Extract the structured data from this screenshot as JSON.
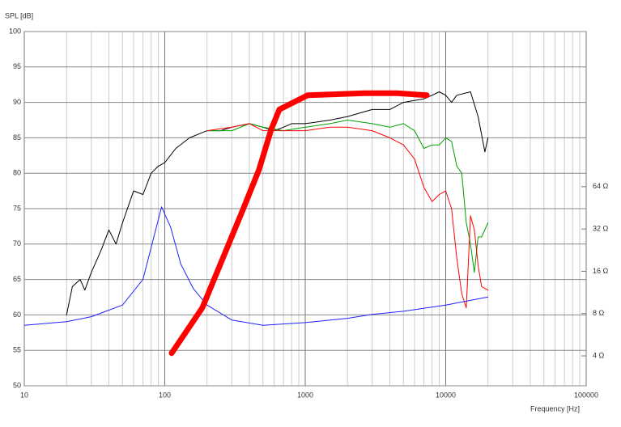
{
  "chart_data": {
    "type": "line",
    "y_label": "SPL [dB]",
    "x_label": "Frequency [Hz]",
    "xscale": "log",
    "xlim": [
      10,
      100000
    ],
    "xticks": [
      10,
      100,
      1000,
      10000,
      100000
    ],
    "ylim": [
      50,
      100
    ],
    "yticks": [
      50,
      55,
      60,
      65,
      70,
      75,
      80,
      85,
      90,
      95,
      100
    ],
    "y2scale": "log",
    "y2lim": [
      2.45,
      814
    ],
    "y2ticks": [
      {
        "value": 4,
        "label": "4 Ω"
      },
      {
        "value": 8,
        "label": "8 Ω"
      },
      {
        "value": 16,
        "label": "16 Ω"
      },
      {
        "value": 32,
        "label": "32 Ω"
      },
      {
        "value": 64,
        "label": "64 Ω"
      }
    ],
    "grid": true,
    "series": [
      {
        "color": "#000000",
        "width": 1,
        "x": [
          20,
          22,
          25,
          27,
          30,
          35,
          40,
          45,
          50,
          60,
          70,
          80,
          90,
          100,
          120,
          150,
          200,
          250,
          300,
          400,
          500,
          600,
          700,
          800,
          1000,
          1500,
          2000,
          3000,
          4000,
          5000,
          7000,
          8000,
          9000,
          10000,
          11000,
          12000,
          15000,
          17000,
          19000,
          20000
        ],
        "values": [
          60,
          64,
          65,
          63.5,
          66,
          69,
          72,
          70,
          73,
          77.5,
          77,
          80,
          81,
          81.5,
          83.5,
          85,
          86,
          86,
          86.5,
          87,
          86.5,
          86,
          86.5,
          87,
          87,
          87.5,
          88,
          89,
          89,
          90,
          90.5,
          91,
          91.5,
          91,
          90,
          91,
          91.5,
          88,
          83,
          85
        ]
      },
      {
        "color": "#00a000",
        "width": 1,
        "x": [
          200,
          300,
          400,
          500,
          700,
          1000,
          1500,
          2000,
          3000,
          4000,
          5000,
          6000,
          7000,
          8000,
          9000,
          10000,
          11000,
          12000,
          13000,
          14000,
          15000,
          16000,
          17000,
          18000,
          20000
        ],
        "values": [
          86,
          86,
          87,
          86.5,
          86,
          86.5,
          87,
          87.5,
          87,
          86.5,
          87,
          86,
          83.5,
          84,
          84,
          85,
          84.5,
          81,
          80,
          73,
          70,
          66,
          71,
          71,
          73
        ]
      },
      {
        "color": "#ff0000",
        "width": 1,
        "x": [
          200,
          300,
          400,
          500,
          700,
          1000,
          1500,
          2000,
          3000,
          4000,
          5000,
          6000,
          7000,
          8000,
          9000,
          10000,
          11000,
          12000,
          13000,
          14000,
          15000,
          16000,
          17000,
          18000,
          20000
        ],
        "values": [
          86,
          86.5,
          87,
          86,
          86,
          86,
          86.5,
          86.5,
          86,
          85,
          84,
          82,
          78,
          76,
          77,
          77.5,
          75,
          68,
          63,
          61,
          74,
          72,
          67,
          64,
          63.5
        ]
      },
      {
        "color": "#2020ff",
        "width": 1,
        "axis": "y2",
        "x": [
          10,
          20,
          30,
          50,
          70,
          85,
          95,
          110,
          130,
          160,
          200,
          300,
          500,
          1000,
          2000,
          3000,
          5000,
          10000,
          20000
        ],
        "values": [
          6.6,
          7.0,
          7.6,
          9.2,
          14,
          30,
          46,
          33,
          18,
          12,
          9.2,
          7.2,
          6.6,
          6.9,
          7.4,
          7.9,
          8.3,
          9.2,
          10.5
        ]
      },
      {
        "color": "#ff0000",
        "width": 7,
        "x": [
          112,
          185,
          359,
          469,
          573,
          654,
          1040,
          2630,
          4470,
          7330
        ],
        "values": [
          54.6,
          61,
          74.8,
          80.5,
          86.2,
          89,
          91,
          91.3,
          91.3,
          91
        ]
      }
    ]
  }
}
